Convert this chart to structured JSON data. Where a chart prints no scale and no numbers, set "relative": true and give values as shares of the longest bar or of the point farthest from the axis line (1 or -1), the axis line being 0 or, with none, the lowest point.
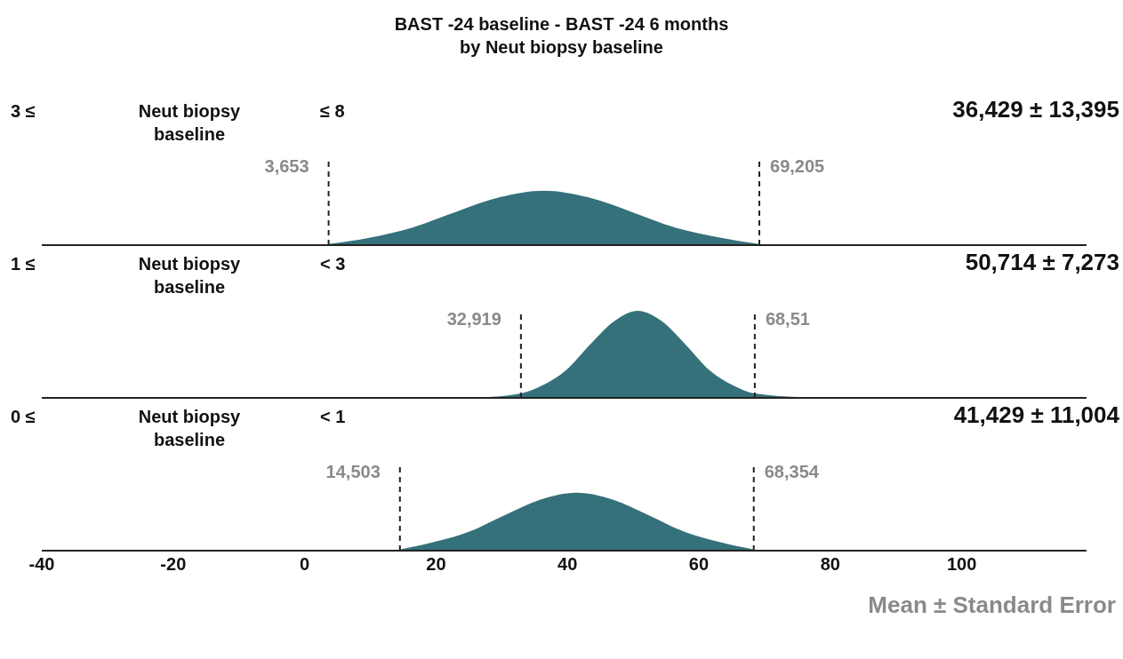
{
  "chart_data": [
    {
      "type": "area",
      "title": "BAST -24 baseline - BAST -24 6 months\nby Neut biopsy baseline",
      "relative": true,
      "xlim": [
        -40,
        119
      ],
      "tick_labels": false,
      "annotations": [
        "3 ≤",
        "Neut biopsy baseline",
        "≤ 8",
        "36,429 ± 13,395"
      ],
      "series": [
        {
          "color": "#35717a",
          "x": [
            3.653,
            10,
            16.3,
            23,
            29.7,
            36.4,
            43.1,
            49.8,
            56.5,
            63.2,
            69.2
          ],
          "values": [
            0.02,
            0.14,
            0.32,
            0.61,
            0.88,
            1,
            0.88,
            0.61,
            0.32,
            0.14,
            0.02
          ]
        }
      ],
      "ref_lines": [
        {
          "axis": "x",
          "value": 3.653,
          "label": "3,653",
          "line_style": "dashed",
          "color": "#222222"
        },
        {
          "axis": "x",
          "value": 69.205,
          "label": "69,205",
          "line_style": "dashed",
          "color": "#222222"
        }
      ]
    },
    {
      "type": "area",
      "relative": true,
      "xlim": [
        -40,
        119
      ],
      "tick_labels": false,
      "annotations": [
        "1 ≤",
        "Neut biopsy baseline",
        "< 3",
        "50,714 ± 7,273"
      ],
      "series": [
        {
          "color": "#35717a",
          "x": [
            28,
            32.9,
            36.1,
            39.8,
            43.4,
            47.1,
            50.7,
            54.4,
            58,
            61.6,
            65.3,
            68.51,
            75
          ],
          "values": [
            0.01,
            0.05,
            0.14,
            0.32,
            0.61,
            0.88,
            1,
            0.88,
            0.61,
            0.32,
            0.14,
            0.05,
            0.01
          ]
        }
      ],
      "ref_lines": [
        {
          "axis": "x",
          "value": 32.919,
          "label": "32,919",
          "line_style": "dashed",
          "color": "#222222"
        },
        {
          "axis": "x",
          "value": 68.51,
          "label": "68,51",
          "line_style": "dashed",
          "color": "#222222"
        }
      ]
    },
    {
      "type": "area",
      "relative": true,
      "xlim": [
        -40,
        119
      ],
      "xticks": [
        -40,
        -20,
        0,
        20,
        40,
        60,
        80,
        100
      ],
      "annotations": [
        "0 ≤",
        "Neut biopsy baseline",
        "< 1",
        "41,429 ± 11,004",
        "Mean ± Standard Error"
      ],
      "series": [
        {
          "color": "#35717a",
          "x": [
            14.503,
            19.4,
            24.9,
            30.4,
            35.9,
            41.4,
            46.9,
            52.4,
            57.9,
            63.4,
            68.354
          ],
          "values": [
            0.02,
            0.14,
            0.32,
            0.61,
            0.88,
            1,
            0.88,
            0.61,
            0.32,
            0.14,
            0.02
          ]
        }
      ],
      "ref_lines": [
        {
          "axis": "x",
          "value": 14.503,
          "label": "14,503",
          "line_style": "dashed",
          "color": "#222222"
        },
        {
          "axis": "x",
          "value": 68.354,
          "label": "68,354",
          "line_style": "dashed",
          "color": "#222222"
        }
      ]
    }
  ]
}
